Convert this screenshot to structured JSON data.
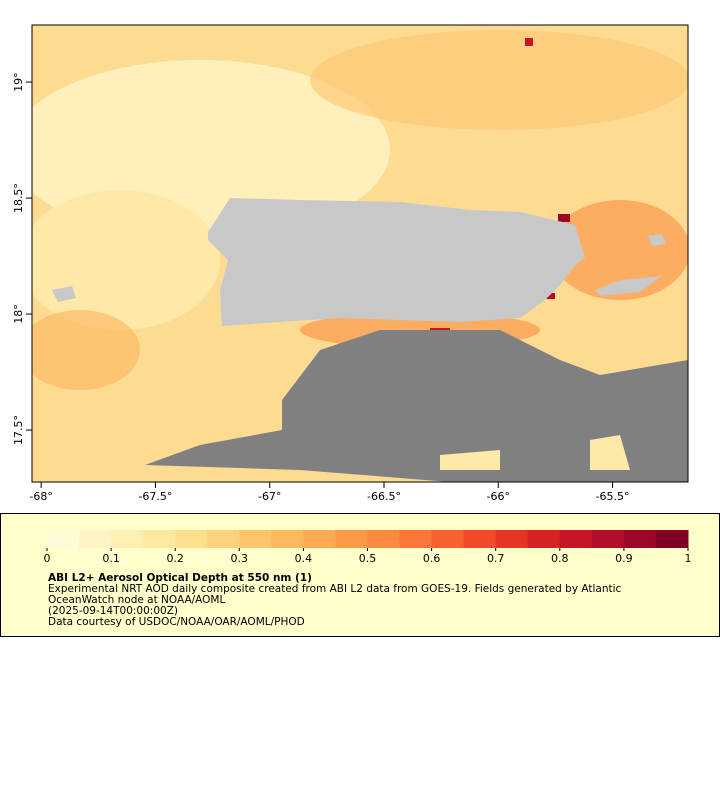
{
  "map": {
    "xlim": [
      -68.04,
      -65.17
    ],
    "ylim": [
      17.276,
      19.246
    ],
    "xticks": [
      {
        "value": -68,
        "label": "-68°"
      },
      {
        "value": -67.5,
        "label": "-67.5°"
      },
      {
        "value": -67,
        "label": "-67°"
      },
      {
        "value": -66.5,
        "label": "-66.5°"
      },
      {
        "value": -66,
        "label": "-66°"
      },
      {
        "value": -65.5,
        "label": "-65.5°"
      }
    ],
    "yticks": [
      {
        "value": 17.5,
        "label": "17.5°"
      },
      {
        "value": 18,
        "label": "18°"
      },
      {
        "value": 18.5,
        "label": "18.5°"
      },
      {
        "value": 19,
        "label": "19°"
      }
    ]
  },
  "colorbar": {
    "lim": [
      0,
      1
    ],
    "ticks": [
      0,
      0.1,
      0.2,
      0.3,
      0.4,
      0.5,
      0.6,
      0.7,
      0.8,
      0.9,
      1
    ],
    "colors": [
      "#fffbd6",
      "#fff5c4",
      "#fef0b2",
      "#fee8a0",
      "#fedf8e",
      "#fed27c",
      "#fec56c",
      "#feb85e",
      "#fdaa52",
      "#fd9a48",
      "#fc8a3f",
      "#fb7637",
      "#f7612f",
      "#f04a29",
      "#e43525",
      "#d62222",
      "#c51627",
      "#b20d2a",
      "#9c0628",
      "#800026"
    ]
  },
  "legend": {
    "title": "ABI L2+ Aerosol Optical Depth at 550 nm (1)",
    "lines": [
      "Experimental NRT AOD daily composite created from ABI L2 data from GOES-19. Fields generated by Atlantic",
      "OceanWatch node at NOAA/AOML",
      "(2025-09-14T00:00:00Z)",
      "Data courtesy of USDOC/NOAA/OAR/AOML/PHOD"
    ]
  }
}
